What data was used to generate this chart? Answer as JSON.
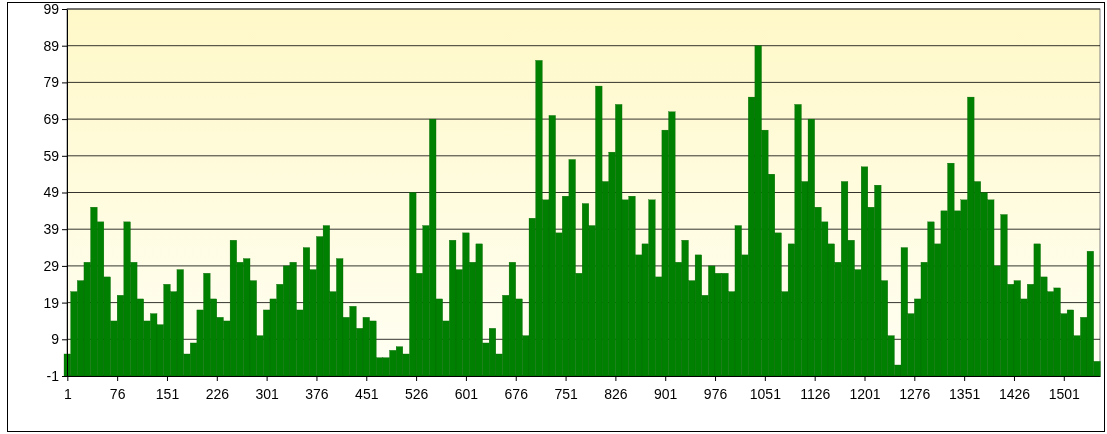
{
  "chart_data": {
    "type": "bar",
    "color": "#008000",
    "x": [
      1,
      11,
      21,
      31,
      41,
      51,
      61,
      71,
      81,
      91,
      101,
      111,
      121,
      131,
      141,
      151,
      161,
      171,
      181,
      191,
      201,
      211,
      221,
      231,
      241,
      251,
      261,
      271,
      281,
      291,
      301,
      311,
      321,
      331,
      341,
      351,
      361,
      371,
      381,
      391,
      401,
      411,
      421,
      431,
      441,
      451,
      461,
      471,
      481,
      491,
      501,
      511,
      521,
      531,
      541,
      551,
      561,
      571,
      581,
      591,
      601,
      611,
      621,
      631,
      641,
      651,
      661,
      671,
      681,
      691,
      701,
      711,
      721,
      731,
      741,
      751,
      761,
      771,
      781,
      791,
      801,
      811,
      821,
      831,
      841,
      851,
      861,
      871,
      881,
      891,
      901,
      911,
      921,
      931,
      941,
      951,
      961,
      971,
      981,
      991,
      1001,
      1011,
      1021,
      1031,
      1041,
      1051,
      1061,
      1071,
      1081,
      1091,
      1101,
      1111,
      1121,
      1131,
      1141,
      1151,
      1161,
      1171,
      1181,
      1191,
      1201,
      1211,
      1221,
      1231,
      1241,
      1251,
      1261,
      1271,
      1281,
      1291,
      1301,
      1311,
      1321,
      1331,
      1341,
      1351,
      1361,
      1371,
      1381,
      1391,
      1401,
      1411,
      1421,
      1431,
      1441,
      1451,
      1461,
      1471,
      1481,
      1491,
      1501,
      1511,
      1521,
      1531,
      1541,
      1551
    ],
    "values": [
      6,
      23,
      26,
      31,
      46,
      42,
      27,
      15,
      22,
      42,
      31,
      21,
      15,
      17,
      14,
      25,
      23,
      29,
      6,
      9,
      18,
      28,
      21,
      16,
      15,
      37,
      31,
      32,
      26,
      11,
      18,
      21,
      25,
      30,
      31,
      18,
      35,
      29,
      38,
      41,
      23,
      32,
      16,
      19,
      13,
      16,
      15,
      5,
      5,
      7,
      8,
      6,
      50,
      28,
      41,
      70,
      21,
      15,
      37,
      29,
      39,
      31,
      36,
      9,
      13,
      6,
      22,
      31,
      21,
      11,
      43,
      86,
      48,
      71,
      39,
      49,
      59,
      28,
      47,
      41,
      79,
      53,
      61,
      74,
      48,
      49,
      33,
      36,
      48,
      27,
      67,
      72,
      31,
      37,
      26,
      33,
      22,
      30,
      28,
      28,
      23,
      41,
      33,
      76,
      90,
      67,
      55,
      39,
      23,
      36,
      74,
      53,
      70,
      46,
      42,
      36,
      31,
      53,
      37,
      29,
      57,
      46,
      52,
      26,
      11,
      3,
      35,
      17,
      21,
      31,
      42,
      36,
      45,
      58,
      45,
      48,
      76,
      53,
      50,
      48,
      30,
      44,
      25,
      26,
      21,
      25,
      36,
      27,
      23,
      24,
      17,
      18,
      11,
      16,
      34,
      4
    ],
    "base": [
      -1,
      -1,
      -1,
      -1,
      -1,
      -1,
      -1,
      -1,
      -1,
      -1,
      -1,
      -1,
      -1,
      -1,
      -1,
      -1,
      -1,
      -1,
      -1,
      -1,
      -1,
      -1,
      -1,
      -1,
      -1,
      -1,
      -1,
      -1,
      -1,
      -1,
      -1,
      -1,
      -1,
      -1,
      -1,
      -1,
      -1,
      -1,
      -1,
      -1,
      -1,
      -1,
      -1,
      -1,
      -1,
      -1,
      -1,
      -1,
      -1,
      -1,
      -1,
      -1,
      -1,
      -1,
      -1,
      -1,
      -1,
      -1,
      -1,
      -1,
      -1,
      -1,
      -1,
      -1,
      -1,
      -1,
      -1,
      -1,
      -1,
      -1,
      -1,
      -1,
      -1,
      -1,
      -1,
      -1,
      -1,
      -1,
      -1,
      -1,
      -1,
      -1,
      -1,
      -1,
      -1,
      -1,
      -1,
      -1,
      -1,
      -1,
      -1,
      -1,
      -1,
      -1,
      -1,
      -1,
      -1,
      -1,
      -1,
      -1,
      -1,
      -1,
      -1,
      -1,
      -1,
      -1,
      -1,
      -1,
      -1,
      -1,
      -1,
      -1,
      -1,
      -1,
      -1,
      -1,
      -1,
      -1,
      -1,
      -1,
      -1,
      -1,
      -1,
      -1,
      -1,
      -1,
      -1,
      -1,
      -1,
      -1,
      -1,
      -1,
      -1,
      -1,
      -1,
      -1,
      -1,
      -1,
      -1,
      -1,
      -1,
      -1,
      -1,
      -1,
      -1,
      -1,
      -1,
      -1,
      -1,
      -1,
      -1,
      -1,
      -1,
      -1,
      -1,
      -1
    ],
    "xlim": [
      0.5,
      1555.5
    ],
    "xticks": [
      1,
      76,
      151,
      226,
      301,
      376,
      451,
      526,
      601,
      676,
      751,
      826,
      901,
      976,
      1051,
      1126,
      1201,
      1276,
      1351,
      1426,
      1501
    ],
    "ylim": [
      -1,
      99
    ],
    "yticks": [
      -1,
      9,
      19,
      29,
      39,
      49,
      59,
      69,
      79,
      89,
      99
    ],
    "grid": "y"
  }
}
